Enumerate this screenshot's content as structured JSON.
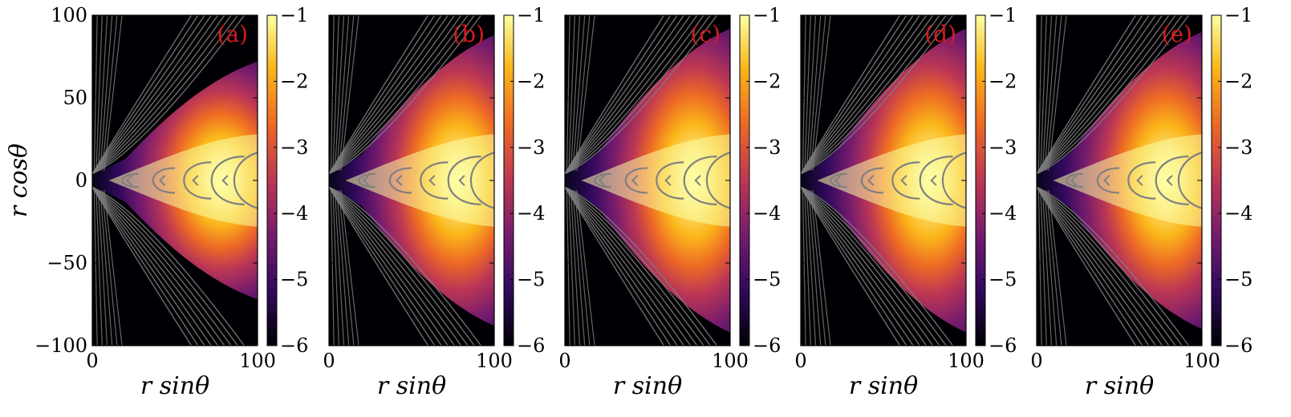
{
  "chart_data": {
    "type": "heatmap",
    "description_units": "log10 density",
    "ylabel": "r cosθ",
    "xlabel": "r sinθ",
    "xlim": [
      0,
      100
    ],
    "ylim": [
      -100,
      100
    ],
    "x_ticks": [
      0,
      100
    ],
    "y_ticks": [
      100,
      50,
      0,
      -50,
      -100
    ],
    "y_tick_labels": [
      "100",
      "50",
      "0",
      "−50",
      "−100"
    ],
    "x_tick_labels": [
      "0",
      "100"
    ],
    "colorbar": {
      "range": [
        -6,
        -1
      ],
      "ticks": [
        -1,
        -2,
        -3,
        -4,
        -5,
        -6
      ],
      "tick_labels": [
        "−1",
        "−2",
        "−3",
        "−4",
        "−5",
        "−6"
      ],
      "colormap": [
        "#000004",
        "#320a5e",
        "#781c6d",
        "#bc3754",
        "#ed6925",
        "#fbb61a",
        "#fcffa4"
      ]
    },
    "panels": [
      {
        "label": "(a)",
        "disk_half_opening_y_at_x100": 72,
        "disk_length": 100
      },
      {
        "label": "(b)",
        "disk_half_opening_y_at_x100": 88,
        "disk_length": 100
      },
      {
        "label": "(c)",
        "disk_half_opening_y_at_x100": 92,
        "disk_length": 100
      },
      {
        "label": "(d)",
        "disk_half_opening_y_at_x100": 92,
        "disk_length": 100
      },
      {
        "label": "(e)",
        "disk_half_opening_y_at_x100": 90,
        "disk_length": 100
      }
    ],
    "streamline_color": "#808080"
  }
}
